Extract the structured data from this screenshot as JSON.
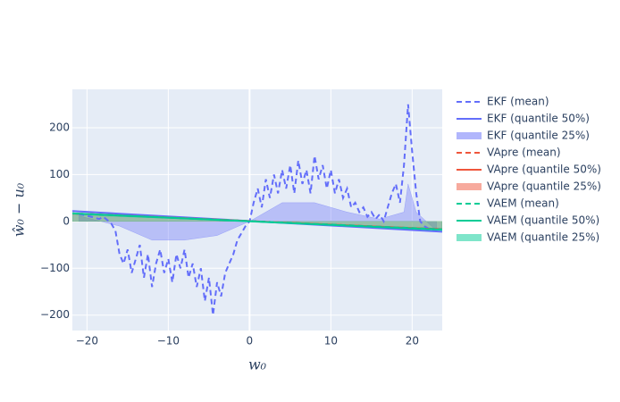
{
  "chart_data": {
    "type": "line",
    "x_label": "w₀",
    "y_label": "ŵ₀ − u₀",
    "xlim": [
      -21.8,
      23.7
    ],
    "ylim": [
      -233,
      282
    ],
    "xticks": [
      {
        "value": -20,
        "label": "−20"
      },
      {
        "value": -10,
        "label": "−10"
      },
      0,
      10,
      20
    ],
    "yticks": [
      {
        "value": -200,
        "label": "−200"
      },
      {
        "value": -100,
        "label": "−100"
      },
      0,
      100,
      200
    ],
    "grid": true,
    "legend": "right",
    "series": [
      {
        "name": "EKF (mean)",
        "color": "#636efa",
        "dash": true,
        "x": [
          -21,
          -20.5,
          -20,
          -19.5,
          -19,
          -18.5,
          -18,
          -17.5,
          -17,
          -16.5,
          -16,
          -15.5,
          -15,
          -14.5,
          -14,
          -13.5,
          -13,
          -12.5,
          -12,
          -11.5,
          -11,
          -10.5,
          -10,
          -9.5,
          -9,
          -8.5,
          -8,
          -7.5,
          -7,
          -6.5,
          -6,
          -5.5,
          -5,
          -4.5,
          -4,
          -3.5,
          -3,
          -2.5,
          -2,
          -1.5,
          -1,
          -0.5,
          0,
          0.5,
          1,
          1.5,
          2,
          2.5,
          3,
          3.5,
          4,
          4.5,
          5,
          5.5,
          6,
          6.5,
          7,
          7.5,
          8,
          8.5,
          9,
          9.5,
          10,
          10.5,
          11,
          11.5,
          12,
          12.5,
          13,
          13.5,
          14,
          14.5,
          15,
          15.5,
          16,
          16.5,
          17,
          17.5,
          18,
          18.5,
          19,
          19.5,
          20,
          20.5,
          21,
          21.5,
          22,
          22.5,
          23
        ],
        "values": [
          15,
          14,
          12,
          10,
          8,
          5,
          10,
          3,
          -5,
          -20,
          -70,
          -90,
          -60,
          -110,
          -80,
          -50,
          -120,
          -70,
          -140,
          -90,
          -60,
          -110,
          -80,
          -130,
          -70,
          -100,
          -60,
          -120,
          -90,
          -140,
          -100,
          -170,
          -120,
          -200,
          -130,
          -160,
          -110,
          -90,
          -70,
          -40,
          -25,
          -10,
          0,
          40,
          70,
          30,
          90,
          50,
          100,
          60,
          110,
          70,
          120,
          60,
          130,
          80,
          110,
          60,
          140,
          90,
          120,
          70,
          110,
          60,
          90,
          50,
          70,
          30,
          40,
          20,
          30,
          10,
          20,
          5,
          15,
          0,
          30,
          60,
          80,
          40,
          120,
          250,
          150,
          60,
          0,
          -10,
          -15,
          -18,
          -20
        ]
      },
      {
        "name": "EKF (quantile 50%)",
        "color": "#636efa",
        "x": [
          -21.8,
          23.7
        ],
        "values": [
          22,
          -22
        ]
      },
      {
        "name": "EKF (quantile 25%)",
        "color": "#636efa",
        "fill": true,
        "x": [
          -21,
          -16,
          -12,
          -8,
          -4,
          0,
          4,
          8,
          12,
          16,
          19,
          19.5,
          20.5,
          23
        ],
        "values": [
          12,
          -10,
          -40,
          -40,
          -30,
          0,
          40,
          40,
          20,
          5,
          20,
          80,
          20,
          -20
        ]
      },
      {
        "name": "VApre (mean)",
        "color": "#ef553b",
        "dash": true,
        "x": [
          -21.8,
          23.7
        ],
        "values": [
          17,
          -17
        ]
      },
      {
        "name": "VApre (quantile 50%)",
        "color": "#ef553b",
        "x": [
          -21.8,
          23.7
        ],
        "values": [
          17,
          -17
        ]
      },
      {
        "name": "VApre (quantile 25%)",
        "color": "#ef553b",
        "fill": true,
        "x": [
          -21.8,
          23.7
        ],
        "values": [
          15,
          -15
        ]
      },
      {
        "name": "VAEM (mean)",
        "color": "#00cc96",
        "dash": true,
        "x": [
          -21.8,
          23.7
        ],
        "values": [
          17,
          -17
        ]
      },
      {
        "name": "VAEM (quantile 50%)",
        "color": "#00cc96",
        "x": [
          -21.8,
          23.7
        ],
        "values": [
          17,
          -18
        ]
      },
      {
        "name": "VAEM (quantile 25%)",
        "color": "#00cc96",
        "fill": true,
        "x": [
          -21.8,
          23.7
        ],
        "values": [
          14,
          -15
        ]
      }
    ]
  }
}
